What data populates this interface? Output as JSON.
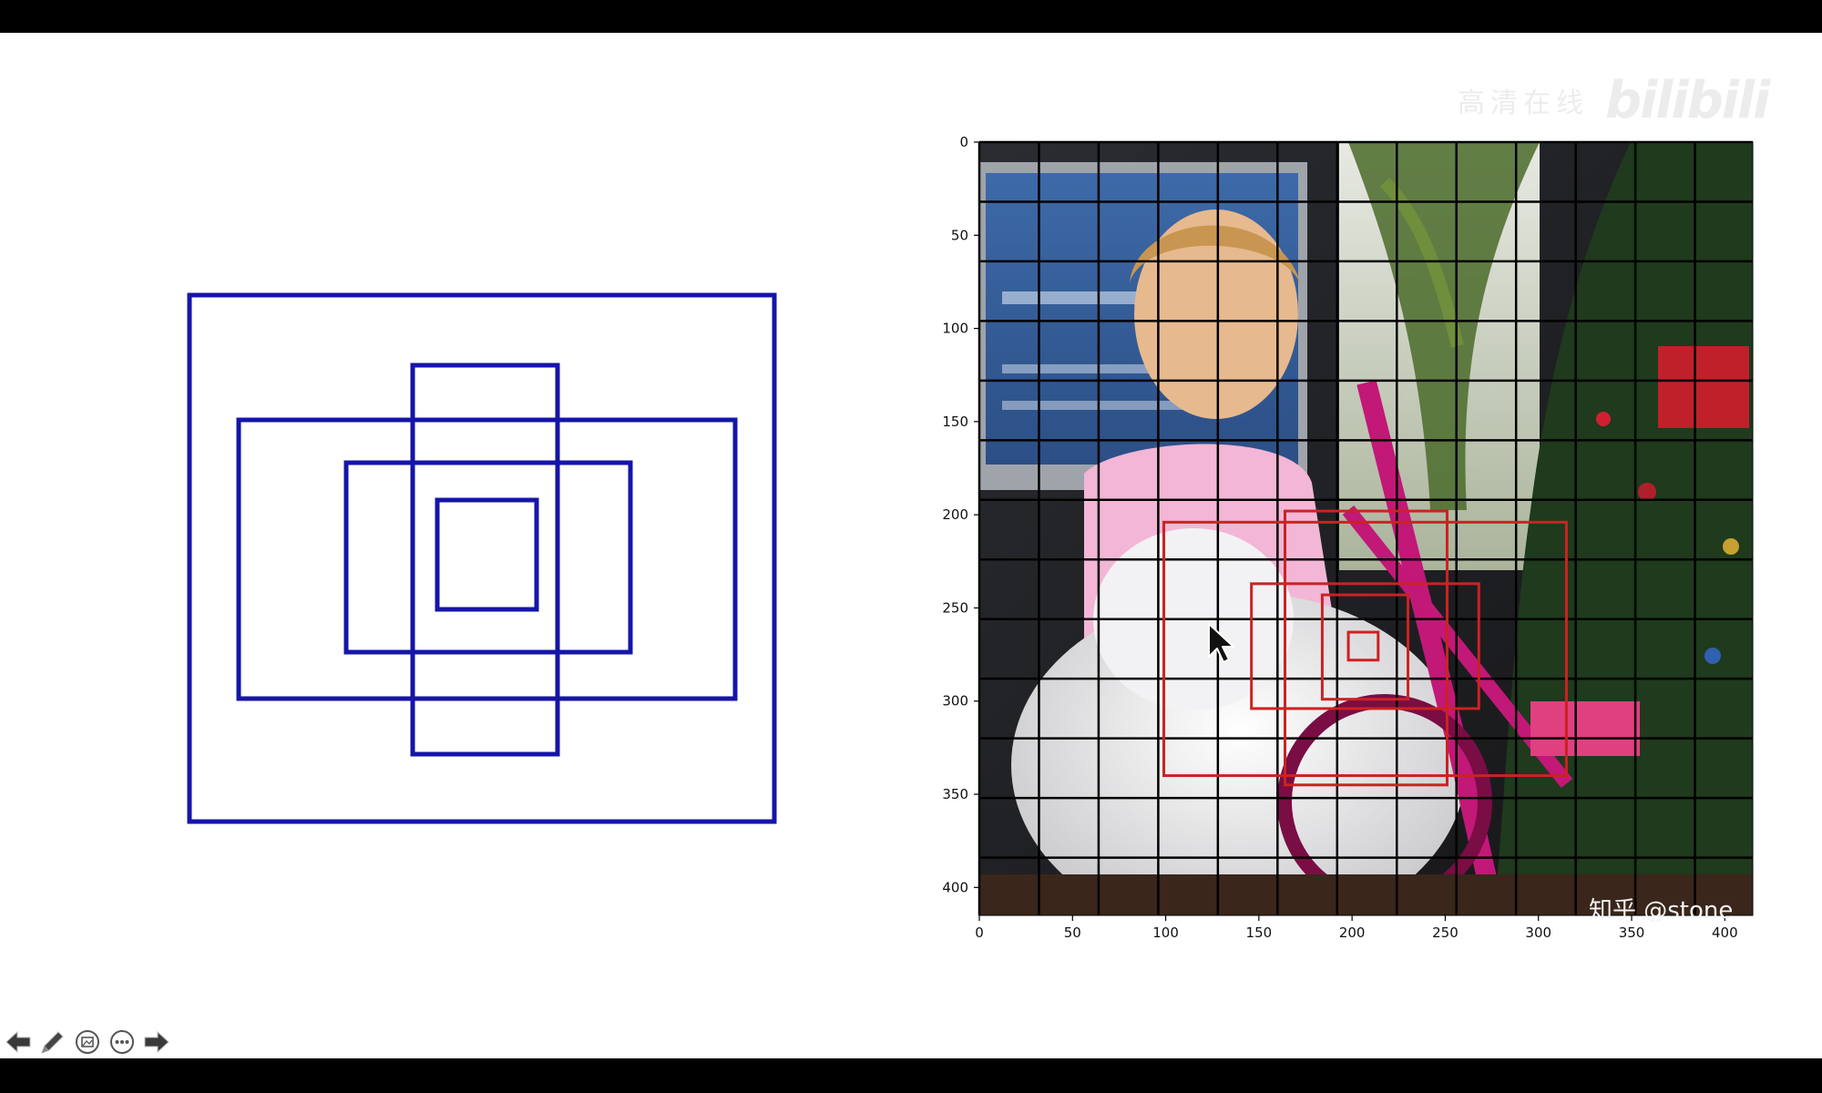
{
  "watermark": {
    "text": "高清在线",
    "logo": "bilibili"
  },
  "chart_data": {
    "type": "image-grid",
    "x_ticks": [
      "0",
      "50",
      "100",
      "150",
      "200",
      "250",
      "300",
      "350",
      "400"
    ],
    "y_ticks": [
      "0",
      "50",
      "100",
      "150",
      "200",
      "250",
      "300",
      "350",
      "400"
    ],
    "xlim": [
      0,
      415
    ],
    "ylim": [
      0,
      415
    ],
    "grid": true,
    "grid_spacing": 32,
    "boxes": [
      {
        "x": [
          99,
          315
        ],
        "y": [
          204,
          340
        ]
      },
      {
        "x": [
          164,
          251
        ],
        "y": [
          198,
          345
        ]
      },
      {
        "x": [
          146,
          268
        ],
        "y": [
          237,
          304
        ]
      },
      {
        "x": [
          184,
          230
        ],
        "y": [
          243,
          299
        ]
      },
      {
        "x": [
          198,
          214
        ],
        "y": [
          263,
          278
        ]
      }
    ],
    "box_color": "#cc2222"
  },
  "photo": {
    "credit": "知乎 @stone"
  },
  "anchor_diagram": {
    "stroke_color": "#1515a8"
  },
  "toolbar": {
    "items": [
      {
        "name": "previous-slide-arrow-icon"
      },
      {
        "name": "pen-icon"
      },
      {
        "name": "slide-thumbnail-icon"
      },
      {
        "name": "more-options-icon"
      },
      {
        "name": "next-slide-arrow-icon"
      }
    ]
  }
}
